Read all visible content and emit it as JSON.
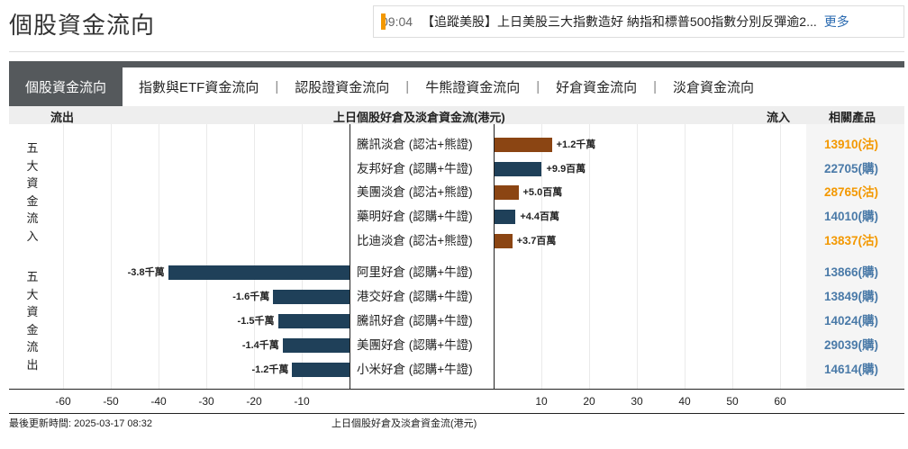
{
  "page_title": "個股資金流向",
  "news": {
    "time": "09:04",
    "text": "【追蹤美股】上日美股三大指數造好 納指和標普500指數分別反彈逾2...",
    "more": "更多",
    "accent": "#f39800"
  },
  "tabs": [
    {
      "label": "個股資金流向",
      "active": true
    },
    {
      "label": "指數與ETF資金流向"
    },
    {
      "label": "認股證資金流向"
    },
    {
      "label": "牛熊證資金流向"
    },
    {
      "label": "好倉資金流向"
    },
    {
      "label": "淡倉資金流向"
    }
  ],
  "header": {
    "outflow": "流出",
    "title": "上日個股好倉及淡倉資金流(港元)",
    "inflow": "流入",
    "products": "相關產品"
  },
  "side_labels": {
    "inflow": "五大資金流入",
    "outflow": "五大資金流出"
  },
  "chart_data": {
    "type": "bar",
    "orientation": "horizontal",
    "units": "百萬港元",
    "xlim": [
      -65,
      65
    ],
    "ticks": [
      -60,
      -50,
      -40,
      -30,
      -20,
      -10,
      10,
      20,
      30,
      40,
      50,
      60
    ],
    "xlabel": "上日個股好倉及淡倉資金流(港元)",
    "grid": true,
    "colors": {
      "bear": "#8b4513",
      "bull": "#1f4059"
    },
    "inflow": [
      {
        "name": "騰訊淡倉 (認沽+熊證)",
        "value": 12,
        "label": "+1.2千萬",
        "type": "bear",
        "product": "13910(沽)"
      },
      {
        "name": "友邦好倉 (認購+牛證)",
        "value": 9.9,
        "label": "+9.9百萬",
        "type": "bull",
        "product": "22705(購)"
      },
      {
        "name": "美團淡倉 (認沽+熊證)",
        "value": 5.0,
        "label": "+5.0百萬",
        "type": "bear",
        "product": "28765(沽)"
      },
      {
        "name": "藥明好倉 (認購+牛證)",
        "value": 4.4,
        "label": "+4.4百萬",
        "type": "bull",
        "product": "14010(購)"
      },
      {
        "name": "比迪淡倉 (認沽+熊證)",
        "value": 3.7,
        "label": "+3.7百萬",
        "type": "bear",
        "product": "13837(沽)"
      }
    ],
    "outflow": [
      {
        "name": "阿里好倉 (認購+牛證)",
        "value": -38,
        "label": "-3.8千萬",
        "type": "bull",
        "product": "13866(購)"
      },
      {
        "name": "港交好倉 (認購+牛證)",
        "value": -16,
        "label": "-1.6千萬",
        "type": "bull",
        "product": "13849(購)"
      },
      {
        "name": "騰訊好倉 (認購+牛證)",
        "value": -15,
        "label": "-1.5千萬",
        "type": "bull",
        "product": "14024(購)"
      },
      {
        "name": "美團好倉 (認購+牛證)",
        "value": -14,
        "label": "-1.4千萬",
        "type": "bull",
        "product": "29039(購)"
      },
      {
        "name": "小米好倉 (認購+牛證)",
        "value": -12,
        "label": "-1.2千萬",
        "type": "bull",
        "product": "14614(購)"
      }
    ]
  },
  "product_colors": {
    "put": "#f39800",
    "call": "#4a7aa8"
  },
  "footer": {
    "updated": "最後更新時間: 2025-03-17 08:32",
    "axis_title": "上日個股好倉及淡倉資金流(港元)"
  }
}
